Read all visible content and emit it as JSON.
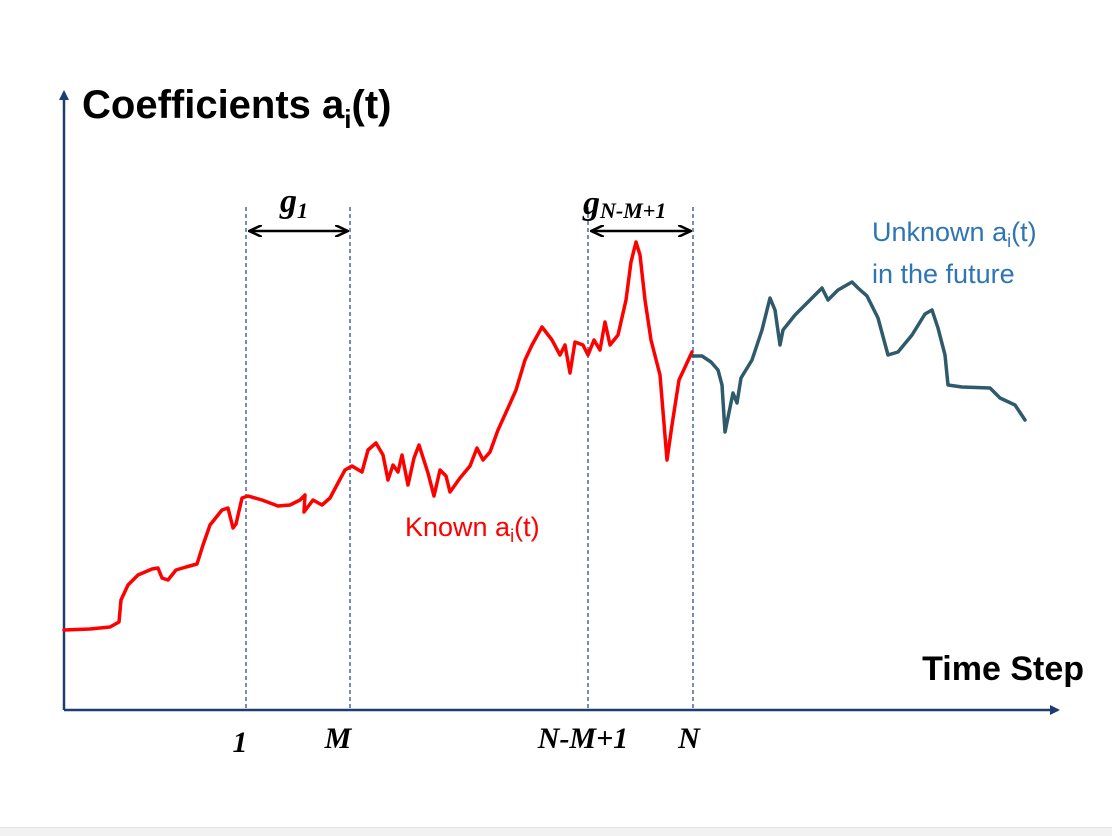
{
  "title": {
    "main": "Coefficients a",
    "sub": "i",
    "tail": "(t)"
  },
  "x_axis_label": "Time Step",
  "ticks": [
    "1",
    "M",
    "N-M+1",
    "N"
  ],
  "windows": [
    {
      "label_main": "g",
      "label_sub": "1"
    },
    {
      "label_main": "g",
      "label_sub": "N-M+1"
    }
  ],
  "known_label": {
    "main": "Known a",
    "sub": "i",
    "tail": "(t)"
  },
  "unknown_label": {
    "line1_main": "Unknown a",
    "line1_sub": "i",
    "line1_tail": "(t)",
    "line2": "in the future"
  },
  "colors": {
    "axis": "#1f3b73",
    "known": "#ff0000",
    "unknown": "#2e5a6b",
    "unknown_text": "#2e75b6",
    "known_text": "#ff0000",
    "guide": "#2f4f8f"
  }
}
